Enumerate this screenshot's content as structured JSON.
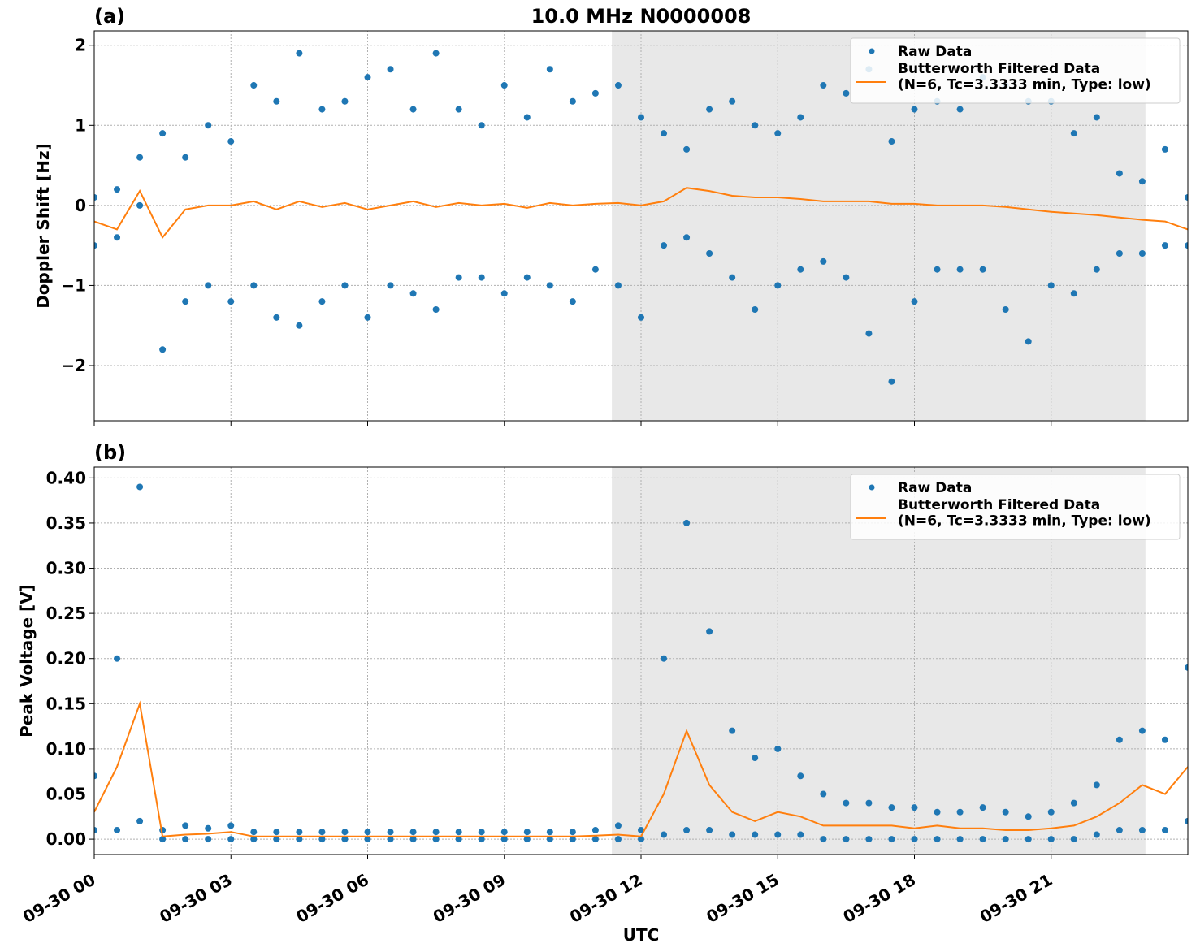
{
  "chart_data": [
    {
      "type": "scatter",
      "panel_label": "(a)",
      "title": "10.0 MHz N0000008",
      "y_label": "Doppler Shift [Hz]",
      "xlim": [
        0,
        24
      ],
      "ylim": [
        -2.69,
        2.18
      ],
      "yticks": [
        {
          "value": -2,
          "label": "−2"
        },
        {
          "value": -1,
          "label": "−1"
        },
        0,
        1,
        2
      ],
      "grid": true,
      "legend": "upper right",
      "shaded_span": [
        11.36,
        23.07
      ],
      "shade_color": "#e8e8e8",
      "series": [
        {
          "name": "Raw Data",
          "type": "scatter",
          "color": "#1f77b4",
          "x": [
            0,
            0,
            0.5,
            0.5,
            1,
            1,
            1.5,
            1.5,
            2,
            2,
            2.5,
            2.5,
            3,
            3,
            3.5,
            3.5,
            4,
            4,
            4.5,
            4.5,
            5,
            5,
            5.5,
            5.5,
            6,
            6,
            6.5,
            6.5,
            7,
            7,
            7.5,
            7.5,
            8,
            8,
            8.5,
            8.5,
            9,
            9,
            9.5,
            9.5,
            10,
            10,
            10.5,
            10.5,
            11,
            11,
            11.5,
            11.5,
            12,
            12,
            12.5,
            12.5,
            13,
            13,
            13.5,
            13.5,
            14,
            14,
            14.5,
            14.5,
            15,
            15,
            15.5,
            15.5,
            16,
            16,
            16.5,
            16.5,
            17,
            17,
            17.5,
            17.5,
            18,
            18,
            18.5,
            18.5,
            19,
            19,
            19.5,
            19.5,
            20,
            20,
            20.5,
            20.5,
            21,
            21,
            21.5,
            21.5,
            22,
            22,
            22.5,
            22.5,
            23,
            23,
            23.5,
            23.5,
            24,
            24
          ],
          "values": [
            0.1,
            -0.5,
            0.2,
            -0.4,
            0.6,
            0.0,
            0.9,
            -1.8,
            0.6,
            -1.2,
            1.0,
            -1.0,
            0.8,
            -1.2,
            1.5,
            -1.0,
            1.3,
            -1.4,
            1.9,
            -1.5,
            1.2,
            -1.2,
            1.3,
            -1.0,
            1.6,
            -1.4,
            1.7,
            -1.0,
            1.2,
            -1.1,
            1.9,
            -1.3,
            1.2,
            -0.9,
            1.0,
            -0.9,
            1.5,
            -1.1,
            1.1,
            -0.9,
            1.7,
            -1.0,
            1.3,
            -1.2,
            1.4,
            -0.8,
            1.5,
            -1.0,
            1.1,
            -1.4,
            0.9,
            -0.5,
            0.7,
            -0.4,
            1.2,
            -0.6,
            1.3,
            -0.9,
            1.0,
            -1.3,
            0.9,
            -1.0,
            1.1,
            -0.8,
            1.5,
            -0.7,
            1.4,
            -0.9,
            1.7,
            -1.6,
            0.8,
            -2.2,
            1.2,
            -1.2,
            1.3,
            -0.8,
            1.2,
            -0.8,
            1.6,
            -0.8,
            1.5,
            -1.3,
            1.3,
            -1.7,
            1.3,
            -1.0,
            0.9,
            -1.1,
            1.1,
            -0.8,
            0.4,
            -0.6,
            0.3,
            -0.6,
            0.7,
            -0.5,
            0.1,
            -0.5
          ]
        },
        {
          "name": "Butterworth Filtered Data\n(N=6, Tc=3.3333 min, Type: low)",
          "type": "line",
          "color": "#ff7f0e",
          "x": [
            0,
            0.5,
            1,
            1.5,
            2,
            2.5,
            3,
            3.5,
            4,
            4.5,
            5,
            5.5,
            6,
            6.5,
            7,
            7.5,
            8,
            8.5,
            9,
            9.5,
            10,
            10.5,
            11,
            11.5,
            12,
            12.5,
            13,
            13.5,
            14,
            14.5,
            15,
            15.5,
            16,
            16.5,
            17,
            17.5,
            18,
            18.5,
            19,
            19.5,
            20,
            20.5,
            21,
            21.5,
            22,
            22.5,
            23,
            23.5,
            24
          ],
          "values": [
            -0.2,
            -0.3,
            0.18,
            -0.4,
            -0.05,
            0.0,
            0.0,
            0.05,
            -0.05,
            0.05,
            -0.02,
            0.03,
            -0.05,
            0.0,
            0.05,
            -0.02,
            0.03,
            0.0,
            0.02,
            -0.03,
            0.03,
            0.0,
            0.02,
            0.03,
            0.0,
            0.05,
            0.22,
            0.18,
            0.12,
            0.1,
            0.1,
            0.08,
            0.05,
            0.05,
            0.05,
            0.02,
            0.02,
            0.0,
            0.0,
            0.0,
            -0.02,
            -0.05,
            -0.08,
            -0.1,
            -0.12,
            -0.15,
            -0.18,
            -0.2,
            -0.3
          ]
        }
      ]
    },
    {
      "type": "scatter",
      "panel_label": "(b)",
      "y_label": "Peak Voltage [V]",
      "x_label": "UTC",
      "xlim": [
        0,
        24
      ],
      "ylim": [
        -0.017,
        0.412
      ],
      "xticks": [
        {
          "value": 0,
          "label": "09-30 00"
        },
        {
          "value": 3,
          "label": "09-30 03"
        },
        {
          "value": 6,
          "label": "09-30 06"
        },
        {
          "value": 9,
          "label": "09-30 09"
        },
        {
          "value": 12,
          "label": "09-30 12"
        },
        {
          "value": 15,
          "label": "09-30 15"
        },
        {
          "value": 18,
          "label": "09-30 18"
        },
        {
          "value": 21,
          "label": "09-30 21"
        }
      ],
      "yticks": [
        {
          "value": 0,
          "label": "0.00"
        },
        {
          "value": 0.05,
          "label": "0.05"
        },
        {
          "value": 0.1,
          "label": "0.10"
        },
        {
          "value": 0.15,
          "label": "0.15"
        },
        {
          "value": 0.2,
          "label": "0.20"
        },
        {
          "value": 0.25,
          "label": "0.25"
        },
        {
          "value": 0.3,
          "label": "0.30"
        },
        {
          "value": 0.35,
          "label": "0.35"
        },
        {
          "value": 0.4,
          "label": "0.40"
        }
      ],
      "grid": true,
      "legend": "upper right",
      "shaded_span": [
        11.36,
        23.07
      ],
      "shade_color": "#e8e8e8",
      "series": [
        {
          "name": "Raw Data",
          "type": "scatter",
          "color": "#1f77b4",
          "x": [
            0,
            0,
            0.5,
            0.5,
            1,
            1,
            1.5,
            1.5,
            2,
            2,
            2.5,
            2.5,
            3,
            3,
            3.5,
            3.5,
            4,
            4,
            4.5,
            4.5,
            5,
            5,
            5.5,
            5.5,
            6,
            6,
            6.5,
            6.5,
            7,
            7,
            7.5,
            7.5,
            8,
            8,
            8.5,
            8.5,
            9,
            9,
            9.5,
            9.5,
            10,
            10,
            10.5,
            10.5,
            11,
            11,
            11.5,
            11.5,
            12,
            12,
            12.5,
            12.5,
            13,
            13,
            13.5,
            13.5,
            14,
            14,
            14.5,
            14.5,
            15,
            15,
            15.5,
            15.5,
            16,
            16,
            16.5,
            16.5,
            17,
            17,
            17.5,
            17.5,
            18,
            18,
            18.5,
            18.5,
            19,
            19,
            19.5,
            19.5,
            20,
            20,
            20.5,
            20.5,
            21,
            21,
            21.5,
            21.5,
            22,
            22,
            22.5,
            22.5,
            23,
            23,
            23.5,
            23.5,
            24,
            24
          ],
          "values": [
            0.07,
            0.01,
            0.2,
            0.01,
            0.39,
            0.02,
            0.01,
            0.0,
            0.015,
            0.0,
            0.012,
            0.0,
            0.015,
            0.0,
            0.008,
            0.0,
            0.008,
            0.0,
            0.008,
            0.0,
            0.008,
            0.0,
            0.008,
            0.0,
            0.008,
            0.0,
            0.008,
            0.0,
            0.008,
            0.0,
            0.008,
            0.0,
            0.008,
            0.0,
            0.008,
            0.0,
            0.008,
            0.0,
            0.008,
            0.0,
            0.008,
            0.0,
            0.008,
            0.0,
            0.01,
            0.0,
            0.015,
            0.0,
            0.01,
            0.0,
            0.2,
            0.005,
            0.35,
            0.01,
            0.23,
            0.01,
            0.12,
            0.005,
            0.09,
            0.005,
            0.1,
            0.005,
            0.07,
            0.005,
            0.05,
            0.0,
            0.04,
            0.0,
            0.04,
            0.0,
            0.035,
            0.0,
            0.035,
            0.0,
            0.03,
            0.0,
            0.03,
            0.0,
            0.035,
            0.0,
            0.03,
            0.0,
            0.025,
            0.0,
            0.03,
            0.0,
            0.04,
            0.0,
            0.06,
            0.005,
            0.11,
            0.01,
            0.12,
            0.01,
            0.11,
            0.01,
            0.19,
            0.02
          ]
        },
        {
          "name": "Butterworth Filtered Data\n(N=6, Tc=3.3333 min, Type: low)",
          "type": "line",
          "color": "#ff7f0e",
          "x": [
            0,
            0.5,
            1,
            1.5,
            2,
            2.5,
            3,
            3.5,
            4,
            4.5,
            5,
            5.5,
            6,
            6.5,
            7,
            7.5,
            8,
            8.5,
            9,
            9.5,
            10,
            10.5,
            11,
            11.5,
            12,
            12.5,
            13,
            13.5,
            14,
            14.5,
            15,
            15.5,
            16,
            16.5,
            17,
            17.5,
            18,
            18.5,
            19,
            19.5,
            20,
            20.5,
            21,
            21.5,
            22,
            22.5,
            23,
            23.5,
            24
          ],
          "values": [
            0.03,
            0.08,
            0.15,
            0.003,
            0.005,
            0.006,
            0.008,
            0.003,
            0.003,
            0.003,
            0.003,
            0.003,
            0.003,
            0.003,
            0.003,
            0.003,
            0.003,
            0.003,
            0.003,
            0.003,
            0.003,
            0.003,
            0.004,
            0.005,
            0.003,
            0.05,
            0.12,
            0.06,
            0.03,
            0.02,
            0.03,
            0.025,
            0.015,
            0.015,
            0.015,
            0.015,
            0.012,
            0.015,
            0.012,
            0.012,
            0.01,
            0.01,
            0.012,
            0.015,
            0.025,
            0.04,
            0.06,
            0.05,
            0.08
          ]
        }
      ]
    }
  ]
}
